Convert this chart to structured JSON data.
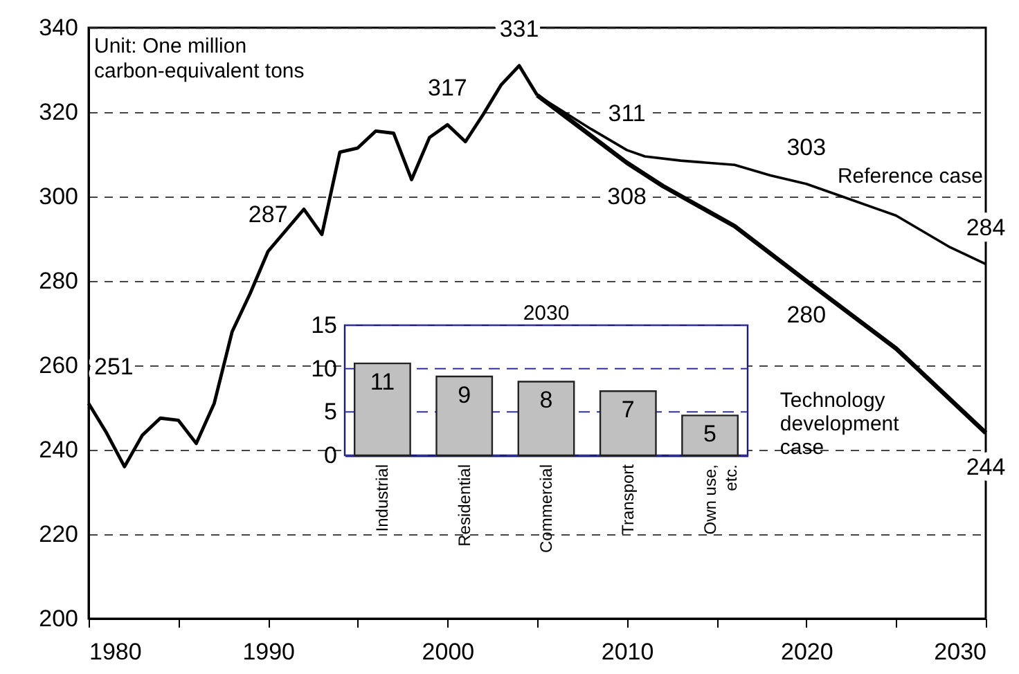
{
  "chart_data": [
    {
      "type": "line",
      "xlim": [
        1980,
        2030
      ],
      "xticks": [
        1980,
        {
          "value": 1985,
          "label": null
        },
        1990,
        {
          "value": 1995,
          "label": null
        },
        2000,
        {
          "value": 2005,
          "label": null
        },
        2010,
        {
          "value": 2015,
          "label": null
        },
        2020,
        {
          "value": 2025,
          "label": null
        },
        2030
      ],
      "ylim": [
        200,
        340
      ],
      "yticks": [
        200,
        220,
        240,
        260,
        280,
        300,
        320,
        340
      ],
      "grid": "y",
      "legend": false,
      "line_style": "solid",
      "annotations": [
        "Unit: One million carbon-equivalent tons"
      ],
      "series": [
        {
          "color": "#000000",
          "x": [
            1980,
            1981,
            1982,
            1983,
            1984,
            1985,
            1986,
            1987,
            1988,
            1989,
            1990,
            1991,
            1992,
            1993,
            1994,
            1995,
            1996,
            1997,
            1998,
            1999,
            2000,
            2001,
            2002,
            2003,
            2004,
            2005
          ],
          "values": [
            251,
            244,
            236,
            243.5,
            247.5,
            247,
            241.5,
            251,
            268,
            277,
            287,
            292,
            297,
            291,
            310.5,
            311.5,
            315.5,
            315,
            304,
            314,
            317,
            313,
            319.5,
            326.5,
            331,
            324
          ],
          "value_labels": [
            "251",
            null,
            null,
            null,
            null,
            null,
            null,
            null,
            null,
            null,
            "287",
            null,
            null,
            null,
            null,
            null,
            null,
            null,
            null,
            null,
            "317",
            null,
            null,
            null,
            "331",
            null
          ]
        },
        {
          "name": "Reference case",
          "color": "#000000",
          "x": [
            2005,
            2008,
            2010,
            2011,
            2013,
            2016,
            2018,
            2020,
            2022,
            2025,
            2028,
            2030
          ],
          "values": [
            324,
            316,
            311,
            309.5,
            308.5,
            307.5,
            305,
            303,
            300,
            295.5,
            288,
            284
          ],
          "value_labels": [
            null,
            null,
            "311",
            null,
            null,
            null,
            null,
            "303",
            null,
            null,
            null,
            "284"
          ]
        },
        {
          "name": "Technology development case",
          "color": "#000000",
          "x": [
            2005,
            2010,
            2012,
            2016,
            2020,
            2025,
            2030
          ],
          "values": [
            324,
            308,
            302.5,
            293,
            280,
            264,
            244
          ],
          "value_labels": [
            null,
            "308",
            null,
            null,
            "280",
            null,
            "244"
          ]
        }
      ]
    },
    {
      "type": "bar",
      "title": "2030",
      "categories": [
        "Industrial",
        "Residential",
        "Commercial",
        "Transport",
        "Own use, etc."
      ],
      "values": [
        10.6,
        9.1,
        8.5,
        7.4,
        4.6
      ],
      "value_labels": [
        "11",
        "9",
        "8",
        "7",
        "5"
      ],
      "color": "#c0c0c0",
      "ylim": [
        0,
        15
      ],
      "yticks": [
        0,
        5,
        10,
        15
      ],
      "grid": "y"
    }
  ]
}
